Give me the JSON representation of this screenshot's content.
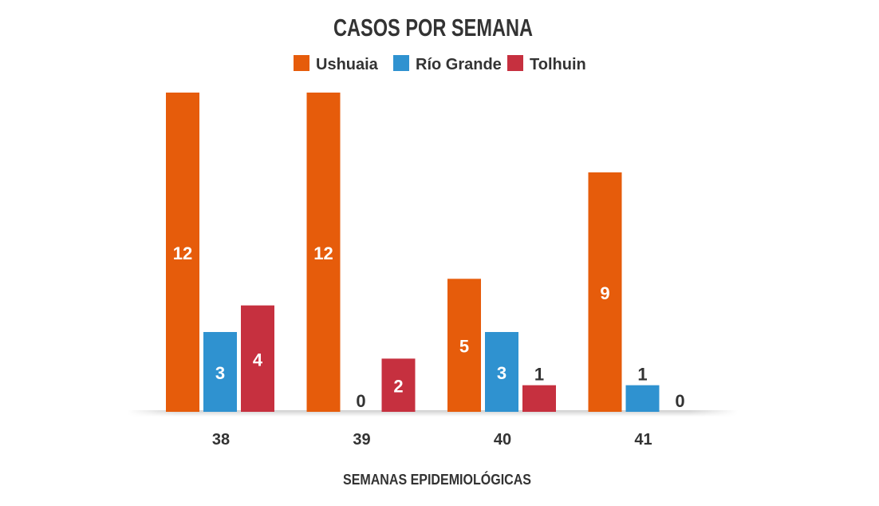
{
  "chart_data": {
    "type": "bar",
    "title": "CASOS POR SEMANA",
    "xlabel": "SEMANAS EPIDEMIOLÓGICAS",
    "ylabel": "",
    "categories": [
      "38",
      "39",
      "40",
      "41"
    ],
    "series": [
      {
        "name": "Ushuaia",
        "color": "#E65C0B",
        "values": [
          12,
          12,
          5,
          9
        ]
      },
      {
        "name": "Río Grande",
        "color": "#2F92D0",
        "values": [
          3,
          0,
          3,
          1
        ]
      },
      {
        "name": "Tolhuin",
        "color": "#C6303F",
        "values": [
          4,
          2,
          1,
          0
        ]
      }
    ],
    "ylim": [
      0,
      12
    ],
    "grid": false,
    "legend": "top-center",
    "data_labels": true,
    "label_color_inside": "#FFFFFF",
    "label_color_outside": "#333333",
    "text_color": "#333333"
  }
}
